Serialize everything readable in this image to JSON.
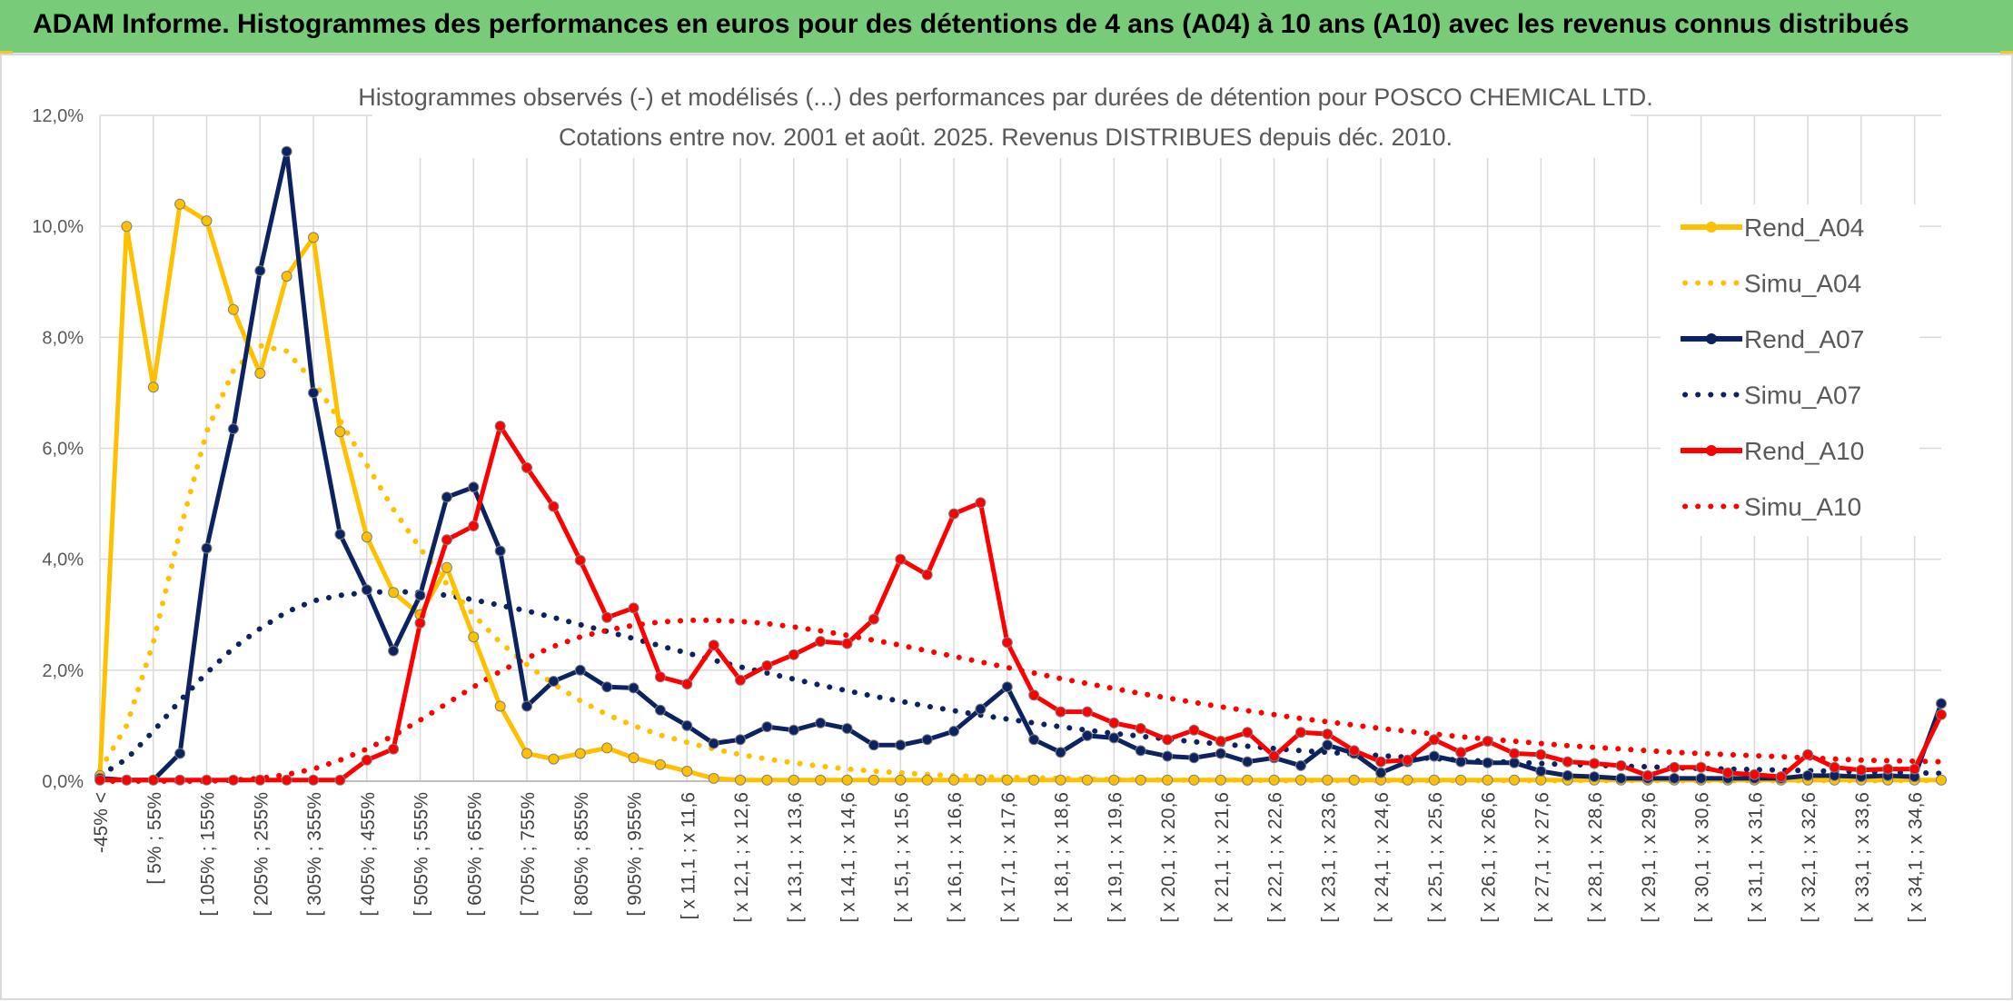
{
  "banner": {
    "title": "ADAM Informe. Histogrammes des performances en euros pour des détentions de 4 ans (A04) à 10 ans (A10) avec les revenus connus distribués",
    "background": "#77cb79"
  },
  "chart_data": {
    "type": "line",
    "title": "Histogrammes observés (-) et modélisés (...) des performances par durées de détention pour POSCO CHEMICAL LTD.",
    "subtitle": "Cotations entre nov. 2001 et août. 2025. Revenus DISTRIBUES depuis déc. 2010.",
    "xlabel": "",
    "ylabel": "",
    "ylim": [
      0,
      12
    ],
    "y_ticks": [
      "0,0%",
      "2,0%",
      "4,0%",
      "6,0%",
      "8,0%",
      "10,0%",
      "12,0%"
    ],
    "grid": true,
    "legend_position": "right",
    "x_tick_labels": [
      "-45% <",
      "[ 5% ; 55%",
      "[ 105% ; 155%",
      "[ 205% ; 255%",
      "[ 305% ; 355%",
      "[ 405% ; 455%",
      "[ 505% ; 555%",
      "[ 605% ; 655%",
      "[ 705% ; 755%",
      "[ 805% ; 855%",
      "[ 905% ; 955%",
      "[ x 11,1 ; x 11,6",
      "[ x 12,1 ; x 12,6",
      "[ x 13,1 ; x 13,6",
      "[ x 14,1 ; x 14,6",
      "[ x 15,1 ; x 15,6",
      "[ x 16,1 ; x 16,6",
      "[ x 17,1 ; x 17,6",
      "[ x 18,1 ; x 18,6",
      "[ x 19,1 ; x 19,6",
      "[ x 20,1 ; x 20,6",
      "[ x 21,1 ; x 21,6",
      "[ x 22,1 ; x 22,6",
      "[ x 23,1 ; x 23,6",
      "[ x 24,1 ; x 24,6",
      "[ x 25,1 ; x 25,6",
      "[ x 26,1 ; x 26,6",
      "[ x 27,1 ; x 27,6",
      "[ x 28,1 ; x 28,6",
      "[ x 29,1 ; x 29,6",
      "[ x 30,1 ; x 30,6",
      "[ x 31,1 ; x 31,6",
      "[ x 32,1 ; x 32,6",
      "[ x 33,1 ; x 33,6",
      "[ x 34,1 ; x 34,6"
    ],
    "series": [
      {
        "name": "Rend_A04",
        "color": "#ffc000",
        "style": "solid",
        "values": [
          0.1,
          10.0,
          7.1,
          10.4,
          10.1,
          8.5,
          7.35,
          9.1,
          9.8,
          6.3,
          4.4,
          3.4,
          3.0,
          3.85,
          2.6,
          1.35,
          0.5,
          0.4,
          0.5,
          0.6,
          0.42,
          0.3,
          0.18,
          0.05,
          0.02,
          0.02,
          0.02,
          0.02,
          0.02,
          0.02,
          0.02,
          0.02,
          0.02,
          0.02,
          0.02,
          0.02,
          0.02,
          0.02,
          0.02,
          0.02,
          0.02,
          0.02,
          0.02,
          0.02,
          0.02,
          0.02,
          0.02,
          0.02,
          0.02,
          0.02,
          0.02,
          0.02,
          0.02,
          0.02,
          0.02,
          0.02,
          0.02,
          0.02,
          0.02,
          0.02,
          0.02,
          0.02,
          0.02,
          0.02,
          0.02,
          0.02,
          0.02,
          0.02,
          0.02,
          0.02
        ]
      },
      {
        "name": "Simu_A04",
        "color": "#ffc000",
        "style": "dotted",
        "values": [
          0.2,
          1.0,
          2.5,
          4.5,
          6.3,
          7.4,
          7.85,
          7.75,
          7.2,
          6.5,
          5.7,
          4.9,
          4.2,
          3.55,
          3.0,
          2.5,
          2.1,
          1.75,
          1.45,
          1.2,
          1.0,
          0.83,
          0.7,
          0.58,
          0.48,
          0.4,
          0.33,
          0.27,
          0.22,
          0.18,
          0.15,
          0.12,
          0.1,
          0.08,
          0.07,
          0.06,
          0.05,
          0.04,
          0.03,
          0.03,
          0.02,
          0.02,
          0.02,
          0.02,
          0.01,
          0.01,
          0.01,
          0.01,
          0.01,
          0.01,
          0.01,
          0.01,
          0.01,
          0.01,
          0.01,
          0.01,
          0.01,
          0.01,
          0.01,
          0.01,
          0.01,
          0.01,
          0.01,
          0.01,
          0.01,
          0.01,
          0.01,
          0.01,
          0.01,
          0.01
        ]
      },
      {
        "name": "Rend_A07",
        "color": "#0d2260",
        "style": "solid",
        "values": [
          0.05,
          0.02,
          0.02,
          0.5,
          4.2,
          6.35,
          9.2,
          11.35,
          7.0,
          4.45,
          3.45,
          2.35,
          3.35,
          5.12,
          5.3,
          4.15,
          1.35,
          1.8,
          2.0,
          1.7,
          1.68,
          1.28,
          1.0,
          0.68,
          0.75,
          0.98,
          0.92,
          1.05,
          0.95,
          0.65,
          0.65,
          0.75,
          0.9,
          1.3,
          1.7,
          0.75,
          0.52,
          0.82,
          0.78,
          0.55,
          0.45,
          0.42,
          0.5,
          0.35,
          0.42,
          0.28,
          0.65,
          0.5,
          0.15,
          0.35,
          0.45,
          0.35,
          0.33,
          0.33,
          0.18,
          0.1,
          0.08,
          0.05,
          0.05,
          0.05,
          0.05,
          0.05,
          0.05,
          0.05,
          0.1,
          0.1,
          0.08,
          0.1,
          0.08,
          1.4
        ]
      },
      {
        "name": "Simu_A07",
        "color": "#0d2260",
        "style": "dotted",
        "values": [
          0.1,
          0.4,
          0.9,
          1.45,
          1.95,
          2.4,
          2.75,
          3.05,
          3.25,
          3.35,
          3.4,
          3.42,
          3.4,
          3.35,
          3.27,
          3.17,
          3.07,
          2.95,
          2.82,
          2.7,
          2.57,
          2.44,
          2.31,
          2.18,
          2.06,
          1.95,
          1.84,
          1.73,
          1.63,
          1.53,
          1.44,
          1.35,
          1.27,
          1.19,
          1.12,
          1.05,
          0.98,
          0.92,
          0.86,
          0.81,
          0.76,
          0.71,
          0.67,
          0.63,
          0.59,
          0.55,
          0.52,
          0.49,
          0.46,
          0.43,
          0.41,
          0.38,
          0.36,
          0.34,
          0.32,
          0.3,
          0.29,
          0.27,
          0.26,
          0.24,
          0.23,
          0.22,
          0.21,
          0.2,
          0.19,
          0.18,
          0.17,
          0.16,
          0.15,
          0.14
        ]
      },
      {
        "name": "Rend_A10",
        "color": "#ff0000",
        "style": "solid",
        "values": [
          0.02,
          0.02,
          0.02,
          0.02,
          0.02,
          0.02,
          0.02,
          0.02,
          0.02,
          0.02,
          0.38,
          0.58,
          2.85,
          4.35,
          4.6,
          6.4,
          5.65,
          4.95,
          3.98,
          2.95,
          3.12,
          1.88,
          1.75,
          2.45,
          1.82,
          2.08,
          2.28,
          2.52,
          2.48,
          2.92,
          4.0,
          3.72,
          4.82,
          5.02,
          2.5,
          1.55,
          1.25,
          1.25,
          1.05,
          0.95,
          0.75,
          0.92,
          0.72,
          0.88,
          0.45,
          0.88,
          0.85,
          0.55,
          0.35,
          0.38,
          0.75,
          0.52,
          0.72,
          0.5,
          0.48,
          0.35,
          0.32,
          0.28,
          0.1,
          0.25,
          0.25,
          0.15,
          0.12,
          0.08,
          0.48,
          0.25,
          0.2,
          0.22,
          0.22,
          1.2
        ]
      },
      {
        "name": "Simu_A10",
        "color": "#ff0000",
        "style": "dotted",
        "values": [
          0.0,
          0.0,
          0.0,
          0.0,
          0.0,
          0.02,
          0.05,
          0.12,
          0.22,
          0.38,
          0.58,
          0.82,
          1.1,
          1.4,
          1.7,
          1.98,
          2.22,
          2.43,
          2.6,
          2.72,
          2.81,
          2.87,
          2.9,
          2.9,
          2.88,
          2.84,
          2.78,
          2.71,
          2.63,
          2.54,
          2.45,
          2.35,
          2.25,
          2.15,
          2.05,
          1.95,
          1.85,
          1.76,
          1.67,
          1.58,
          1.5,
          1.42,
          1.34,
          1.27,
          1.2,
          1.13,
          1.07,
          1.01,
          0.95,
          0.9,
          0.85,
          0.8,
          0.76,
          0.72,
          0.68,
          0.64,
          0.61,
          0.58,
          0.55,
          0.52,
          0.5,
          0.48,
          0.46,
          0.44,
          0.42,
          0.4,
          0.38,
          0.37,
          0.36,
          0.35
        ]
      }
    ]
  }
}
